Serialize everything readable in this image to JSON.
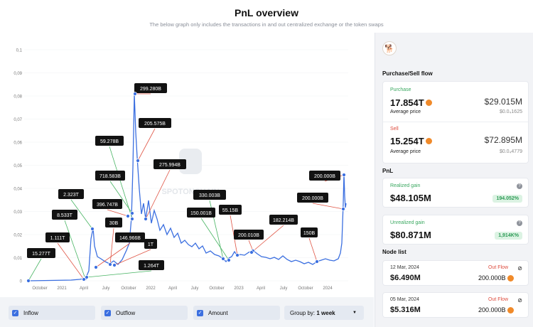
{
  "header": {
    "title": "PnL overview",
    "subtitle": "The below graph only includes the transactions in and out centralized exchange or the token swaps"
  },
  "chart_data": {
    "type": "line",
    "y_ticks": [
      "0,1",
      "0,09",
      "0,08",
      "0,07",
      "0,06",
      "0,05",
      "0,04",
      "0,03",
      "0,02",
      "0,01",
      "0"
    ],
    "x_ticks": [
      "October",
      "2021",
      "April",
      "July",
      "October",
      "2022",
      "April",
      "July",
      "October",
      "2023",
      "April",
      "July",
      "October",
      "2024"
    ],
    "series_color": "#3b6fe0",
    "watermark": "SPOTONCHAIN",
    "annotations": [
      {
        "label": "299.280B",
        "kind": "sell"
      },
      {
        "label": "205.575B",
        "kind": "sell"
      },
      {
        "label": "59.278B",
        "kind": "buy"
      },
      {
        "label": "275.994B",
        "kind": "sell"
      },
      {
        "label": "718.583B",
        "kind": "buy"
      },
      {
        "label": "2.323T",
        "kind": "buy"
      },
      {
        "label": "396.747B",
        "kind": "sell"
      },
      {
        "label": "8.533T",
        "kind": "buy"
      },
      {
        "label": "30B",
        "kind": "sell"
      },
      {
        "label": "1.111T",
        "kind": "sell"
      },
      {
        "label": "146.966B",
        "kind": "sell"
      },
      {
        "label": "1T",
        "kind": "sell"
      },
      {
        "label": "15.277T",
        "kind": "buy"
      },
      {
        "label": "1.264T",
        "kind": "buy"
      },
      {
        "label": "330.003B",
        "kind": "buy"
      },
      {
        "label": "150.001B",
        "kind": "buy"
      },
      {
        "label": "55.15B",
        "kind": "sell"
      },
      {
        "label": "200.010B",
        "kind": "sell"
      },
      {
        "label": "182.214B",
        "kind": "sell"
      },
      {
        "label": "150B",
        "kind": "sell"
      },
      {
        "label": "200.000B",
        "kind": "sell"
      },
      {
        "label": "200.000B",
        "kind": "sell"
      }
    ]
  },
  "controls": {
    "inflow": "Inflow",
    "outflow": "Outflow",
    "amount": "Amount",
    "group_prefix": "Group by:",
    "group_value": "1 week"
  },
  "side": {
    "purchase_sell_title": "Purchase/Sell flow",
    "purchase": {
      "label": "Purchase",
      "amount": "17.854T",
      "usd": "$29.015M",
      "avg_label": "Average price",
      "avg_value": "$0.0₄1625"
    },
    "sell": {
      "label": "Sell",
      "amount": "15.254T",
      "usd": "$72.895M",
      "avg_label": "Average price",
      "avg_value": "$0.0₄4779"
    },
    "pnl_title": "PnL",
    "realized": {
      "label": "Realized gain",
      "value": "$48.105M",
      "pct": "194.052%"
    },
    "unrealized": {
      "label": "Unrealized gain",
      "value": "$80.871M",
      "pct": "1,914K%"
    },
    "node_title": "Node list",
    "nodes": [
      {
        "date": "12 Mar, 2024",
        "flow": "Out Flow",
        "usd": "$6.490M",
        "amount": "200.000B"
      },
      {
        "date": "05 Mar, 2024",
        "flow": "Out Flow",
        "usd": "$5.316M",
        "amount": "200.000B"
      }
    ]
  }
}
